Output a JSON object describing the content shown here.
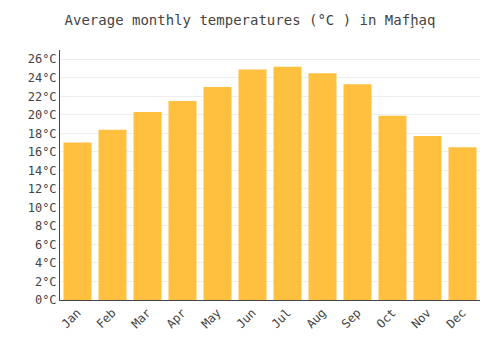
{
  "chart_data": {
    "type": "bar",
    "title": "Average monthly temperatures (°C ) in Mafḩ̣aq",
    "categories": [
      "Jan",
      "Feb",
      "Mar",
      "Apr",
      "May",
      "Jun",
      "Jul",
      "Aug",
      "Sep",
      "Oct",
      "Nov",
      "Dec"
    ],
    "values": [
      17.0,
      18.4,
      20.3,
      21.5,
      23.0,
      24.9,
      25.2,
      24.5,
      23.3,
      19.9,
      17.7,
      16.5
    ],
    "color": "#FFC040",
    "ylim": [
      0,
      27
    ],
    "yticks": [
      {
        "value": 0,
        "label": "0°C"
      },
      {
        "value": 2,
        "label": "2°C"
      },
      {
        "value": 4,
        "label": "4°C"
      },
      {
        "value": 6,
        "label": "6°C"
      },
      {
        "value": 8,
        "label": "8°C"
      },
      {
        "value": 10,
        "label": "10°C"
      },
      {
        "value": 12,
        "label": "12°C"
      },
      {
        "value": 14,
        "label": "14°C"
      },
      {
        "value": 16,
        "label": "16°C"
      },
      {
        "value": 18,
        "label": "18°C"
      },
      {
        "value": 20,
        "label": "20°C"
      },
      {
        "value": 22,
        "label": "22°C"
      },
      {
        "value": 24,
        "label": "24°C"
      },
      {
        "value": 26,
        "label": "26°C"
      }
    ],
    "grid": true
  }
}
